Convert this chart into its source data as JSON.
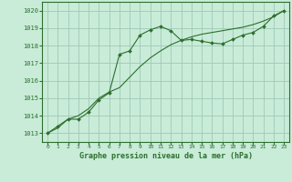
{
  "title": "Graphe pression niveau de la mer (hPa)",
  "background_color": "#c8ecd8",
  "grid_color": "#a0c8b8",
  "line_color": "#2d6e2d",
  "x_ticks": [
    0,
    1,
    2,
    3,
    4,
    5,
    6,
    7,
    8,
    9,
    10,
    11,
    12,
    13,
    14,
    15,
    16,
    17,
    18,
    19,
    20,
    21,
    22,
    23
  ],
  "y_ticks": [
    1013,
    1014,
    1015,
    1016,
    1017,
    1018,
    1019,
    1020
  ],
  "ylim": [
    1012.5,
    1020.5
  ],
  "xlim": [
    -0.5,
    23.5
  ],
  "series1_x": [
    0,
    1,
    2,
    3,
    4,
    5,
    6,
    7,
    8,
    9,
    10,
    11,
    12,
    13,
    14,
    15,
    16,
    17,
    18,
    19,
    20,
    21,
    22,
    23
  ],
  "series1_y": [
    1013.0,
    1013.4,
    1013.8,
    1013.8,
    1014.2,
    1014.9,
    1015.3,
    1017.5,
    1017.7,
    1018.6,
    1018.9,
    1019.1,
    1018.85,
    1018.3,
    1018.35,
    1018.25,
    1018.15,
    1018.1,
    1018.35,
    1018.6,
    1018.75,
    1019.1,
    1019.7,
    1020.0
  ],
  "series2_x": [
    0,
    1,
    2,
    3,
    4,
    5,
    6,
    7,
    8,
    9,
    10,
    11,
    12,
    13,
    14,
    15,
    16,
    17,
    18,
    19,
    20,
    21,
    22,
    23
  ],
  "series2_y": [
    1013.0,
    1013.3,
    1013.8,
    1014.0,
    1014.4,
    1015.0,
    1015.35,
    1015.6,
    1016.2,
    1016.8,
    1017.3,
    1017.7,
    1018.05,
    1018.3,
    1018.5,
    1018.65,
    1018.75,
    1018.85,
    1018.95,
    1019.05,
    1019.2,
    1019.4,
    1019.65,
    1020.0
  ]
}
